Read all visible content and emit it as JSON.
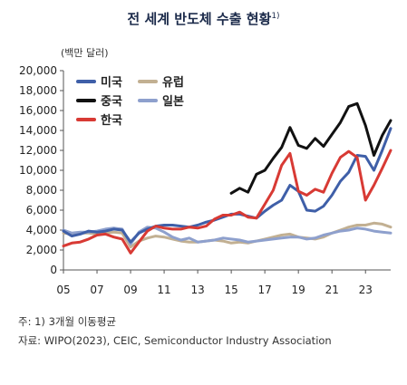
{
  "title": "전 세계 반도체 수출 현황",
  "title_sup": "1)",
  "unit": "(백만 달러)",
  "notes": {
    "note1": "주: 1) 3개월 이동평균",
    "source": "자료: WIPO(2023), CEIC, Semiconductor Industry Association"
  },
  "colors": {
    "usa": "#3f5fa8",
    "china": "#111111",
    "korea": "#d83a34",
    "europe": "#c2b092",
    "japan": "#8ea0cd"
  },
  "chart_data": {
    "type": "line",
    "title": "전 세계 반도체 수출 현황",
    "ylabel": "(백만 달러)",
    "xlabel": "",
    "ylim": [
      0,
      20000
    ],
    "xlim": [
      2005,
      2024.5
    ],
    "yticks": [
      "0",
      "2,000",
      "4,000",
      "6,000",
      "8,000",
      "10,000",
      "12,000",
      "14,000",
      "16,000",
      "18,000",
      "20,000"
    ],
    "xticks": [
      "05",
      "07",
      "09",
      "11",
      "13",
      "15",
      "17",
      "19",
      "21",
      "23"
    ],
    "legend_position": "top-left",
    "grid": false,
    "series": [
      {
        "name": "미국",
        "color": "#3f5fa8",
        "points": [
          [
            2005,
            3900
          ],
          [
            2005.5,
            3400
          ],
          [
            2006,
            3600
          ],
          [
            2006.5,
            3900
          ],
          [
            2007,
            3800
          ],
          [
            2007.5,
            3900
          ],
          [
            2008,
            4100
          ],
          [
            2008.5,
            4000
          ],
          [
            2009,
            2800
          ],
          [
            2009.5,
            3700
          ],
          [
            2010,
            4100
          ],
          [
            2010.5,
            4400
          ],
          [
            2011,
            4500
          ],
          [
            2011.5,
            4500
          ],
          [
            2012,
            4400
          ],
          [
            2012.5,
            4300
          ],
          [
            2013,
            4500
          ],
          [
            2013.5,
            4800
          ],
          [
            2014,
            5000
          ],
          [
            2014.5,
            5300
          ],
          [
            2015,
            5600
          ],
          [
            2015.5,
            5600
          ],
          [
            2016,
            5400
          ],
          [
            2016.5,
            5200
          ],
          [
            2017,
            5900
          ],
          [
            2017.5,
            6500
          ],
          [
            2018,
            7000
          ],
          [
            2018.5,
            8500
          ],
          [
            2019,
            7900
          ],
          [
            2019.5,
            6000
          ],
          [
            2020,
            5900
          ],
          [
            2020.5,
            6400
          ],
          [
            2021,
            7500
          ],
          [
            2021.5,
            8900
          ],
          [
            2022,
            9800
          ],
          [
            2022.5,
            11500
          ],
          [
            2023,
            11400
          ],
          [
            2023.5,
            10000
          ],
          [
            2024,
            12000
          ],
          [
            2024.5,
            14200
          ]
        ]
      },
      {
        "name": "중국",
        "color": "#111111",
        "points": [
          [
            2015,
            7700
          ],
          [
            2015.5,
            8200
          ],
          [
            2016,
            7800
          ],
          [
            2016.5,
            9600
          ],
          [
            2017,
            10000
          ],
          [
            2017.5,
            11200
          ],
          [
            2018,
            12300
          ],
          [
            2018.5,
            14300
          ],
          [
            2019,
            12500
          ],
          [
            2019.5,
            12200
          ],
          [
            2020,
            13200
          ],
          [
            2020.5,
            12400
          ],
          [
            2021,
            13600
          ],
          [
            2021.5,
            14800
          ],
          [
            2022,
            16400
          ],
          [
            2022.5,
            16700
          ],
          [
            2023,
            14500
          ],
          [
            2023.5,
            11500
          ],
          [
            2024,
            13500
          ],
          [
            2024.5,
            15000
          ]
        ]
      },
      {
        "name": "한국",
        "color": "#d83a34",
        "points": [
          [
            2005,
            2400
          ],
          [
            2005.5,
            2700
          ],
          [
            2006,
            2800
          ],
          [
            2006.5,
            3100
          ],
          [
            2007,
            3500
          ],
          [
            2007.5,
            3600
          ],
          [
            2008,
            3300
          ],
          [
            2008.5,
            3100
          ],
          [
            2009,
            1700
          ],
          [
            2009.5,
            2800
          ],
          [
            2010,
            3900
          ],
          [
            2010.5,
            4400
          ],
          [
            2011,
            4200
          ],
          [
            2011.5,
            4100
          ],
          [
            2012,
            4100
          ],
          [
            2012.5,
            4300
          ],
          [
            2013,
            4200
          ],
          [
            2013.5,
            4400
          ],
          [
            2014,
            5100
          ],
          [
            2014.5,
            5500
          ],
          [
            2015,
            5500
          ],
          [
            2015.5,
            5800
          ],
          [
            2016,
            5300
          ],
          [
            2016.5,
            5200
          ],
          [
            2017,
            6600
          ],
          [
            2017.5,
            8000
          ],
          [
            2018,
            10500
          ],
          [
            2018.5,
            11700
          ],
          [
            2019,
            7900
          ],
          [
            2019.5,
            7500
          ],
          [
            2020,
            8100
          ],
          [
            2020.5,
            7800
          ],
          [
            2021,
            9700
          ],
          [
            2021.5,
            11300
          ],
          [
            2022,
            11900
          ],
          [
            2022.5,
            11300
          ],
          [
            2023,
            7000
          ],
          [
            2023.5,
            8500
          ],
          [
            2024,
            10200
          ],
          [
            2024.5,
            12000
          ]
        ]
      },
      {
        "name": "유럽",
        "color": "#c2b092",
        "points": [
          [
            2005,
            3700
          ],
          [
            2005.5,
            3600
          ],
          [
            2006,
            3700
          ],
          [
            2006.5,
            3700
          ],
          [
            2007,
            3600
          ],
          [
            2007.5,
            3700
          ],
          [
            2008,
            3800
          ],
          [
            2008.5,
            3700
          ],
          [
            2009,
            2300
          ],
          [
            2009.5,
            2900
          ],
          [
            2010,
            3200
          ],
          [
            2010.5,
            3400
          ],
          [
            2011,
            3300
          ],
          [
            2011.5,
            3100
          ],
          [
            2012,
            2900
          ],
          [
            2012.5,
            2800
          ],
          [
            2013,
            2800
          ],
          [
            2013.5,
            2900
          ],
          [
            2014,
            3000
          ],
          [
            2014.5,
            2900
          ],
          [
            2015,
            2700
          ],
          [
            2015.5,
            2800
          ],
          [
            2016,
            2700
          ],
          [
            2016.5,
            2900
          ],
          [
            2017,
            3100
          ],
          [
            2017.5,
            3300
          ],
          [
            2018,
            3500
          ],
          [
            2018.5,
            3600
          ],
          [
            2019,
            3300
          ],
          [
            2019.5,
            3200
          ],
          [
            2020,
            3100
          ],
          [
            2020.5,
            3300
          ],
          [
            2021,
            3700
          ],
          [
            2021.5,
            4000
          ],
          [
            2022,
            4300
          ],
          [
            2022.5,
            4500
          ],
          [
            2023,
            4500
          ],
          [
            2023.5,
            4700
          ],
          [
            2024,
            4600
          ],
          [
            2024.5,
            4300
          ]
        ]
      },
      {
        "name": "일본",
        "color": "#8ea0cd",
        "points": [
          [
            2005,
            4000
          ],
          [
            2005.5,
            3700
          ],
          [
            2006,
            3800
          ],
          [
            2006.5,
            3800
          ],
          [
            2007,
            3900
          ],
          [
            2007.5,
            4100
          ],
          [
            2008,
            4200
          ],
          [
            2008.5,
            4100
          ],
          [
            2009,
            2600
          ],
          [
            2009.5,
            3800
          ],
          [
            2010,
            4300
          ],
          [
            2010.5,
            4200
          ],
          [
            2011,
            3800
          ],
          [
            2011.5,
            3300
          ],
          [
            2012,
            3000
          ],
          [
            2012.5,
            3200
          ],
          [
            2013,
            2800
          ],
          [
            2013.5,
            2900
          ],
          [
            2014,
            3000
          ],
          [
            2014.5,
            3200
          ],
          [
            2015,
            3100
          ],
          [
            2015.5,
            3000
          ],
          [
            2016,
            2800
          ],
          [
            2016.5,
            2900
          ],
          [
            2017,
            3000
          ],
          [
            2017.5,
            3100
          ],
          [
            2018,
            3200
          ],
          [
            2018.5,
            3300
          ],
          [
            2019,
            3300
          ],
          [
            2019.5,
            3100
          ],
          [
            2020,
            3200
          ],
          [
            2020.5,
            3500
          ],
          [
            2021,
            3700
          ],
          [
            2021.5,
            3900
          ],
          [
            2022,
            4000
          ],
          [
            2022.5,
            4200
          ],
          [
            2023,
            4100
          ],
          [
            2023.5,
            3900
          ],
          [
            2024,
            3800
          ],
          [
            2024.5,
            3700
          ]
        ]
      }
    ]
  }
}
